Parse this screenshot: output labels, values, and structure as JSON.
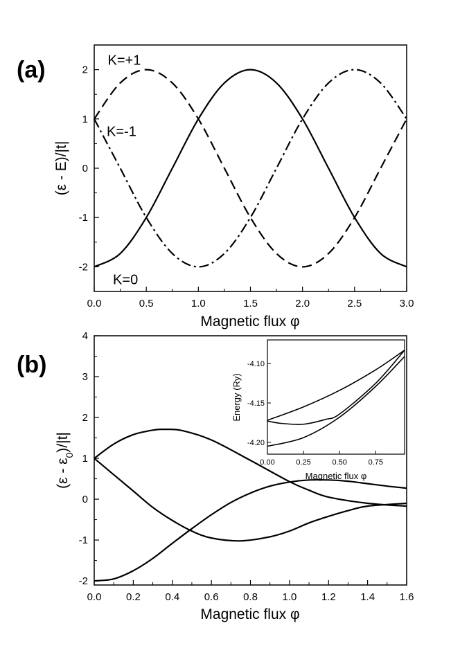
{
  "chart_data": [
    {
      "panel_label": "(a)",
      "type": "line",
      "xlabel": "Magnetic flux φ",
      "ylabel": "(ε - E)/|t|",
      "xlim": [
        0,
        3
      ],
      "ylim": [
        -2.5,
        2.5
      ],
      "xticks": [
        "0.0",
        "0.5",
        "1.0",
        "1.5",
        "2.0",
        "2.5",
        "3.0"
      ],
      "yticks": [
        "-2",
        "-1",
        "0",
        "1",
        "2"
      ],
      "series": [
        {
          "name": "K=0",
          "style": "solid",
          "x": [
            0,
            0.25,
            0.5,
            0.75,
            1.0,
            1.25,
            1.5,
            1.75,
            2.0,
            2.25,
            2.5,
            2.75,
            3.0
          ],
          "y": [
            -2,
            -1.73,
            -1,
            0,
            1,
            1.73,
            2,
            1.73,
            1,
            0,
            -1,
            -1.73,
            -2
          ]
        },
        {
          "name": "K=+1",
          "style": "dashed",
          "x": [
            0,
            0.25,
            0.5,
            0.75,
            1.0,
            1.25,
            1.5,
            1.75,
            2.0,
            2.25,
            2.5,
            2.75,
            3.0
          ],
          "y": [
            1,
            1.73,
            2,
            1.73,
            1,
            0,
            -1,
            -1.73,
            -2,
            -1.73,
            -1,
            0,
            1
          ]
        },
        {
          "name": "K=-1",
          "style": "dashdot",
          "x": [
            0,
            0.25,
            0.5,
            0.75,
            1.0,
            1.25,
            1.5,
            1.75,
            2.0,
            2.25,
            2.5,
            2.75,
            3.0
          ],
          "y": [
            1,
            0,
            -1,
            -1.73,
            -2,
            -1.73,
            -1,
            0,
            1,
            1.73,
            2,
            1.73,
            1
          ]
        }
      ],
      "annotations": [
        {
          "text": "K=+1",
          "x": 0.13,
          "y": 2.1
        },
        {
          "text": "K=-1",
          "x": 0.12,
          "y": 0.65
        },
        {
          "text": "K=0",
          "x": 0.18,
          "y": -2.35
        }
      ]
    },
    {
      "panel_label": "(b)",
      "type": "line",
      "xlabel": "Magnetic flux φ",
      "ylabel": "(ε - ε",
      "ylabel_sub": "0",
      "ylabel_end": ")/|t|",
      "xlim": [
        0,
        1.6
      ],
      "ylim": [
        -2.1,
        4
      ],
      "xticks": [
        "0.0",
        "0.2",
        "0.4",
        "0.6",
        "0.8",
        "1.0",
        "1.2",
        "1.4",
        "1.6"
      ],
      "yticks": [
        "-2",
        "-1",
        "0",
        "1",
        "2",
        "3",
        "4"
      ],
      "series": [
        {
          "style": "solid",
          "x": [
            0,
            0.1,
            0.2,
            0.3,
            0.36,
            0.45,
            0.6,
            0.8,
            1.0,
            1.1,
            1.2,
            1.4,
            1.6
          ],
          "y": [
            1,
            1.35,
            1.58,
            1.69,
            1.71,
            1.68,
            1.45,
            0.95,
            0.43,
            0.22,
            0.05,
            -0.1,
            -0.17
          ]
        },
        {
          "style": "solid",
          "x": [
            0,
            0.1,
            0.2,
            0.3,
            0.4,
            0.5,
            0.6,
            0.75,
            0.9,
            1.0,
            1.1,
            1.2,
            1.3,
            1.4,
            1.6
          ],
          "y": [
            1,
            0.6,
            0.2,
            -0.2,
            -0.52,
            -0.78,
            -0.95,
            -1.02,
            -0.92,
            -0.78,
            -0.58,
            -0.42,
            -0.28,
            -0.17,
            -0.1
          ]
        },
        {
          "style": "solid",
          "x": [
            0,
            0.1,
            0.2,
            0.3,
            0.4,
            0.5,
            0.6,
            0.7,
            0.8,
            0.9,
            1.0,
            1.1,
            1.2,
            1.3,
            1.4,
            1.5,
            1.6
          ],
          "y": [
            -2,
            -1.95,
            -1.75,
            -1.45,
            -1.08,
            -0.72,
            -0.38,
            -0.08,
            0.15,
            0.32,
            0.42,
            0.47,
            0.47,
            0.44,
            0.38,
            0.32,
            0.27
          ]
        }
      ],
      "inset": {
        "type": "line",
        "xlabel": "Magnetic flux φ",
        "ylabel": "Energy (Ry)",
        "xlim": [
          0,
          0.95
        ],
        "ylim": [
          -4.215,
          -4.07
        ],
        "xticks": [
          "0.00",
          "0.25",
          "0.50",
          "0.75"
        ],
        "yticks": [
          "-4.10",
          "-4.15",
          "-4.20"
        ],
        "series": [
          {
            "style": "solid",
            "x": [
              0,
              0.25,
              0.5,
              0.75,
              0.95
            ],
            "y": [
              -4.172,
              -4.155,
              -4.134,
              -4.108,
              -4.083
            ]
          },
          {
            "style": "solid",
            "x": [
              0,
              0.1,
              0.25,
              0.4,
              0.5,
              0.75,
              0.95
            ],
            "y": [
              -4.173,
              -4.176,
              -4.177,
              -4.171,
              -4.164,
              -4.125,
              -4.083
            ]
          },
          {
            "style": "solid",
            "x": [
              0,
              0.25,
              0.5,
              0.75,
              0.95
            ],
            "y": [
              -4.205,
              -4.194,
              -4.168,
              -4.129,
              -4.091
            ]
          }
        ]
      }
    }
  ]
}
